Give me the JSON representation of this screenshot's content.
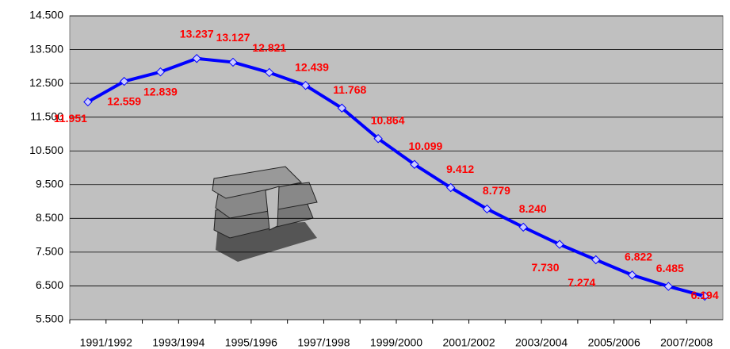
{
  "chart_data": {
    "type": "line",
    "categories": [
      "1991/1992",
      null,
      "1993/1994",
      null,
      "1995/1996",
      null,
      "1997/1998",
      null,
      "1999/2000",
      null,
      "2001/2002",
      null,
      "2003/2004",
      null,
      "2005/2006",
      null,
      "2007/2008",
      null
    ],
    "series": [
      {
        "color": "#0000ff",
        "values": [
          11951,
          12559,
          12839,
          13237,
          13127,
          12821,
          12439,
          11768,
          10864,
          10099,
          9412,
          8779,
          8240,
          7730,
          7274,
          6822,
          6485,
          6194
        ],
        "value_labels": [
          "11.951",
          "12.559",
          "12.839",
          "13.237",
          "13.127",
          "12.821",
          "12.439",
          "11.768",
          "10.864",
          "10.099",
          "9.412",
          "8.779",
          "8.240",
          "7.730",
          "7.274",
          "6.822",
          "6.485",
          "6.194"
        ]
      }
    ],
    "ylim": [
      5500,
      14500
    ],
    "yticks": [
      {
        "value": 5500,
        "label": "5.500"
      },
      {
        "value": 6500,
        "label": "6.500"
      },
      {
        "value": 7500,
        "label": "7.500"
      },
      {
        "value": 8500,
        "label": "8.500"
      },
      {
        "value": 9500,
        "label": "9.500"
      },
      {
        "value": 10500,
        "label": "10.500"
      },
      {
        "value": 11500,
        "label": "11.500"
      },
      {
        "value": 12500,
        "label": "12.500"
      },
      {
        "value": 13500,
        "label": "13.500"
      },
      {
        "value": 14500,
        "label": "14.500"
      }
    ],
    "grid": true
  }
}
